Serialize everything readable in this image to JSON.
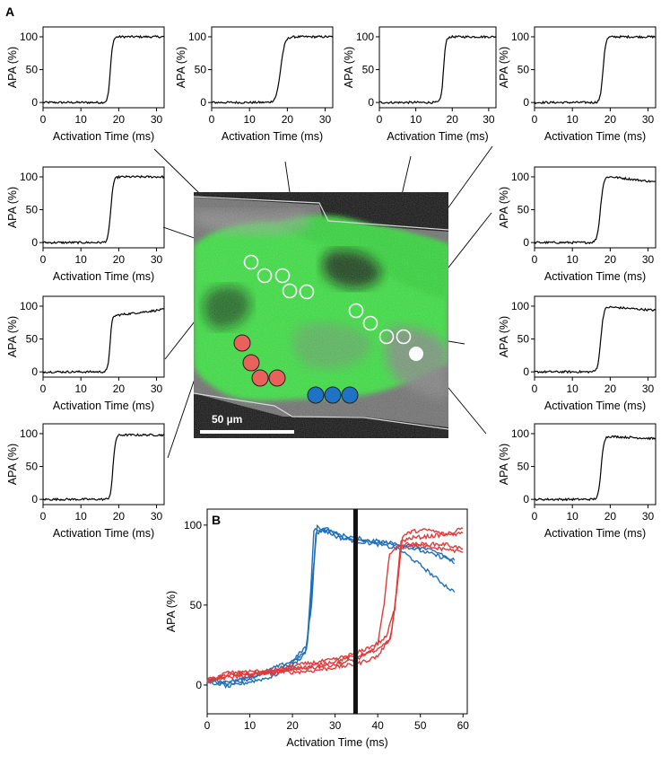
{
  "panel_a_label": "A",
  "panel_b_label": "B",
  "scale_bar_label": "50 µm",
  "colors": {
    "trace": "#000000",
    "tissue": "#35d43a",
    "red_marker": "#e8615b",
    "blue_marker": "#1f73c4",
    "red_series": "#e03b3b",
    "blue_series": "#1e6fb8"
  },
  "chart_data": [
    {
      "id": "a1",
      "type": "line",
      "xlabel": "Activation Time (ms)",
      "ylabel": "APA (%)",
      "xticks": [
        0,
        10,
        20,
        30
      ],
      "yticks": [
        0,
        50,
        100
      ],
      "xlim": [
        0,
        32
      ],
      "ylim": [
        -8,
        115
      ],
      "upstroke_ms": 17.8,
      "rise_ms": 0.9,
      "plateau": 100,
      "drift": 0
    },
    {
      "id": "a2",
      "type": "line",
      "xlabel": "Activation Time (ms)",
      "ylabel": "APA (%)",
      "xticks": [
        0,
        10,
        20,
        30
      ],
      "yticks": [
        0,
        50,
        100
      ],
      "xlim": [
        0,
        32
      ],
      "ylim": [
        -8,
        115
      ],
      "upstroke_ms": 18.2,
      "rise_ms": 1.6,
      "plateau": 100,
      "drift": 0
    },
    {
      "id": "a3",
      "type": "line",
      "xlabel": "Activation Time (ms)",
      "ylabel": "APA (%)",
      "xticks": [
        0,
        10,
        20,
        30
      ],
      "yticks": [
        0,
        50,
        100
      ],
      "xlim": [
        0,
        32
      ],
      "ylim": [
        -8,
        115
      ],
      "upstroke_ms": 17.6,
      "rise_ms": 0.9,
      "plateau": 100,
      "drift": 0
    },
    {
      "id": "a4",
      "type": "line",
      "xlabel": "Activation Time (ms)",
      "ylabel": "APA (%)",
      "xticks": [
        0,
        10,
        20,
        30
      ],
      "yticks": [
        0,
        50,
        100
      ],
      "xlim": [
        0,
        32
      ],
      "ylim": [
        -8,
        115
      ],
      "upstroke_ms": 18.1,
      "rise_ms": 1.0,
      "plateau": 100,
      "drift": 0
    },
    {
      "id": "a5",
      "type": "line",
      "xlabel": "Activation Time (ms)",
      "ylabel": "APA (%)",
      "xticks": [
        0,
        10,
        20,
        30
      ],
      "yticks": [
        0,
        50,
        100
      ],
      "xlim": [
        0,
        32
      ],
      "ylim": [
        -8,
        115
      ],
      "upstroke_ms": 17.9,
      "rise_ms": 1.0,
      "plateau": 100,
      "drift": 0
    },
    {
      "id": "a6",
      "type": "line",
      "xlabel": "Activation Time (ms)",
      "ylabel": "APA (%)",
      "xticks": [
        0,
        10,
        20,
        30
      ],
      "yticks": [
        0,
        50,
        100
      ],
      "xlim": [
        0,
        32
      ],
      "ylim": [
        -8,
        115
      ],
      "upstroke_ms": 17.4,
      "rise_ms": 1.2,
      "plateau": 101,
      "drift": -10
    },
    {
      "id": "a7",
      "type": "line",
      "xlabel": "Activation Time (ms)",
      "ylabel": "APA (%)",
      "xticks": [
        0,
        10,
        20,
        30
      ],
      "yticks": [
        0,
        50,
        100
      ],
      "xlim": [
        0,
        32
      ],
      "ylim": [
        -8,
        115
      ],
      "upstroke_ms": 17.7,
      "rise_ms": 0.8,
      "plateau": 86,
      "drift": 10
    },
    {
      "id": "a8",
      "type": "line",
      "xlabel": "Activation Time (ms)",
      "ylabel": "APA (%)",
      "xticks": [
        0,
        10,
        20,
        30
      ],
      "yticks": [
        0,
        50,
        100
      ],
      "xlim": [
        0,
        32
      ],
      "ylim": [
        -8,
        115
      ],
      "upstroke_ms": 17.5,
      "rise_ms": 1.1,
      "plateau": 99,
      "drift": -6
    },
    {
      "id": "a9",
      "type": "line",
      "xlabel": "Activation Time (ms)",
      "ylabel": "APA (%)",
      "xticks": [
        0,
        10,
        20,
        30
      ],
      "yticks": [
        0,
        50,
        100
      ],
      "xlim": [
        0,
        32
      ],
      "ylim": [
        -8,
        115
      ],
      "upstroke_ms": 18.5,
      "rise_ms": 0.9,
      "plateau": 98,
      "drift": 0
    },
    {
      "id": "a10",
      "type": "line",
      "xlabel": "Activation Time (ms)",
      "ylabel": "APA (%)",
      "xticks": [
        0,
        10,
        20,
        30
      ],
      "yticks": [
        0,
        50,
        100
      ],
      "xlim": [
        0,
        32
      ],
      "ylim": [
        -8,
        115
      ],
      "upstroke_ms": 17.6,
      "rise_ms": 1.0,
      "plateau": 96,
      "drift": -4
    },
    {
      "id": "b",
      "type": "line",
      "xlabel": "Activation Time (ms)",
      "ylabel": "APA (%)",
      "xticks": [
        0,
        10,
        20,
        30,
        40,
        50,
        60
      ],
      "yticks": [
        0,
        50,
        100
      ],
      "xlim": [
        0,
        61
      ],
      "ylim": [
        -18,
        110
      ],
      "black_bar_ms": 34.8,
      "series": [
        {
          "group": "blue",
          "points": [
            [
              0,
              3
            ],
            [
              5,
              -1
            ],
            [
              10,
              2
            ],
            [
              15,
              5
            ],
            [
              20,
              12
            ],
            [
              23,
              20
            ],
            [
              24.5,
              50
            ],
            [
              25.5,
              95
            ],
            [
              28,
              98
            ],
            [
              31,
              93
            ],
            [
              35,
              90
            ],
            [
              40,
              90
            ],
            [
              45,
              88
            ],
            [
              50,
              86
            ],
            [
              55,
              82
            ],
            [
              58,
              76
            ]
          ]
        },
        {
          "group": "blue",
          "points": [
            [
              0,
              1
            ],
            [
              5,
              2
            ],
            [
              10,
              5
            ],
            [
              15,
              8
            ],
            [
              20,
              14
            ],
            [
              23.3,
              22
            ],
            [
              24.3,
              60
            ],
            [
              25,
              97
            ],
            [
              28,
              96
            ],
            [
              31,
              92
            ],
            [
              35,
              90
            ],
            [
              40,
              88
            ],
            [
              45,
              85
            ],
            [
              50,
              75
            ],
            [
              55,
              64
            ],
            [
              58,
              58
            ]
          ]
        },
        {
          "group": "blue",
          "points": [
            [
              0,
              4
            ],
            [
              5,
              1
            ],
            [
              10,
              4
            ],
            [
              15,
              10
            ],
            [
              20,
              15
            ],
            [
              23.5,
              25
            ],
            [
              24.8,
              70
            ],
            [
              25.8,
              99
            ],
            [
              28,
              97
            ],
            [
              31,
              94
            ],
            [
              35,
              92
            ],
            [
              40,
              89
            ],
            [
              45,
              88
            ],
            [
              50,
              84
            ],
            [
              55,
              80
            ],
            [
              58,
              78
            ]
          ]
        },
        {
          "group": "red",
          "points": [
            [
              0,
              1
            ],
            [
              5,
              7
            ],
            [
              10,
              6
            ],
            [
              15,
              8
            ],
            [
              20,
              8
            ],
            [
              25,
              9
            ],
            [
              30,
              11
            ],
            [
              35,
              13
            ],
            [
              40,
              18
            ],
            [
              43,
              30
            ],
            [
              44.5,
              60
            ],
            [
              45.8,
              93
            ],
            [
              48,
              96
            ],
            [
              52,
              97
            ],
            [
              56,
              94
            ],
            [
              60,
              95
            ]
          ]
        },
        {
          "group": "red",
          "points": [
            [
              0,
              4
            ],
            [
              5,
              6
            ],
            [
              10,
              9
            ],
            [
              15,
              7
            ],
            [
              20,
              10
            ],
            [
              25,
              11
            ],
            [
              30,
              13
            ],
            [
              35,
              16
            ],
            [
              38,
              20
            ],
            [
              40,
              26
            ],
            [
              41.5,
              50
            ],
            [
              42.8,
              83
            ],
            [
              46,
              88
            ],
            [
              52,
              88
            ],
            [
              56,
              88
            ],
            [
              60,
              85
            ]
          ]
        },
        {
          "group": "red",
          "points": [
            [
              0,
              2
            ],
            [
              5,
              5
            ],
            [
              10,
              6
            ],
            [
              15,
              9
            ],
            [
              20,
              10
            ],
            [
              25,
              12
            ],
            [
              30,
              15
            ],
            [
              35,
              18
            ],
            [
              40,
              22
            ],
            [
              43,
              28
            ],
            [
              44.5,
              60
            ],
            [
              45.5,
              90
            ],
            [
              48,
              92
            ],
            [
              52,
              93
            ],
            [
              56,
              94
            ],
            [
              60,
              98
            ]
          ]
        },
        {
          "group": "red",
          "points": [
            [
              0,
              3
            ],
            [
              5,
              8
            ],
            [
              10,
              7
            ],
            [
              15,
              9
            ],
            [
              20,
              12
            ],
            [
              25,
              14
            ],
            [
              30,
              16
            ],
            [
              35,
              20
            ],
            [
              40,
              26
            ],
            [
              42,
              30
            ],
            [
              44,
              48
            ],
            [
              45.2,
              85
            ],
            [
              48,
              88
            ],
            [
              52,
              86
            ],
            [
              56,
              85
            ],
            [
              60,
              83
            ]
          ]
        }
      ]
    }
  ]
}
